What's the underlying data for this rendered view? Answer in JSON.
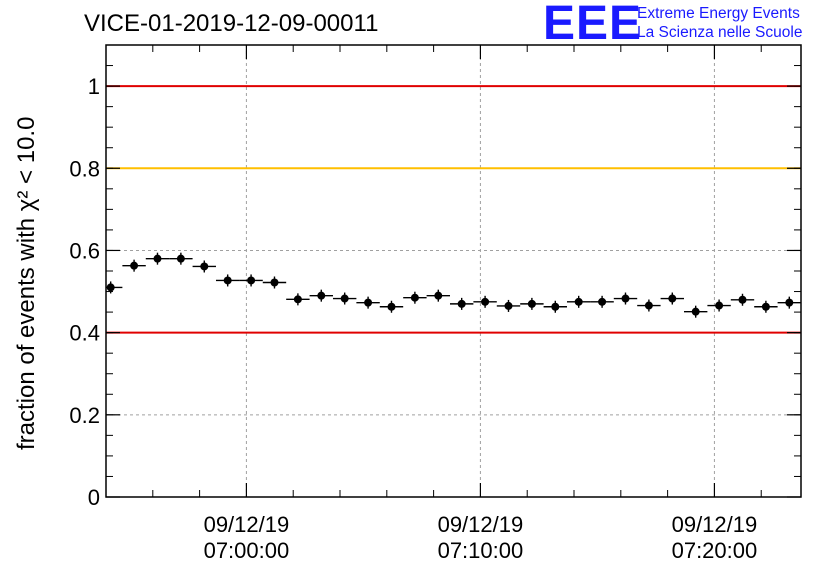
{
  "title": "VICE-01-2019-12-09-00011",
  "logo": {
    "mark": "EEE",
    "line1": "Extreme Energy Events",
    "line2": "La Scienza nelle Scuole"
  },
  "chart_data": {
    "type": "scatter",
    "title": "VICE-01-2019-12-09-00011",
    "ylabel": "fraction of events with χ² < 10.0",
    "ylim": [
      0,
      1.1
    ],
    "xlim_minutes": [
      -6.0,
      23.7
    ],
    "yticks": [
      0,
      0.2,
      0.4,
      0.6,
      0.8,
      1
    ],
    "ytick_labels": [
      "0",
      "0.2",
      "0.4",
      "0.6",
      "0.8",
      "1"
    ],
    "xticks": [
      {
        "minutes": 0,
        "date": "09/12/19",
        "time": "07:00:00"
      },
      {
        "minutes": 10,
        "date": "09/12/19",
        "time": "07:10:00"
      },
      {
        "minutes": 20,
        "date": "09/12/19",
        "time": "07:20:00"
      }
    ],
    "grid": true,
    "bin_width_minutes": 1.0,
    "reference_lines": [
      {
        "y": 1.0,
        "color": "#e00000"
      },
      {
        "y": 0.8,
        "color": "#ffbf00"
      },
      {
        "y": 0.4,
        "color": "#e00000"
      }
    ],
    "points": [
      {
        "x": -5.8,
        "y": 0.51
      },
      {
        "x": -4.8,
        "y": 0.563
      },
      {
        "x": -3.8,
        "y": 0.58
      },
      {
        "x": -2.8,
        "y": 0.58
      },
      {
        "x": -1.8,
        "y": 0.561
      },
      {
        "x": -0.8,
        "y": 0.527
      },
      {
        "x": 0.2,
        "y": 0.527
      },
      {
        "x": 1.2,
        "y": 0.522
      },
      {
        "x": 2.2,
        "y": 0.481
      },
      {
        "x": 3.2,
        "y": 0.49
      },
      {
        "x": 4.2,
        "y": 0.483
      },
      {
        "x": 5.2,
        "y": 0.473
      },
      {
        "x": 6.2,
        "y": 0.463
      },
      {
        "x": 7.2,
        "y": 0.485
      },
      {
        "x": 8.2,
        "y": 0.49
      },
      {
        "x": 9.2,
        "y": 0.47
      },
      {
        "x": 10.2,
        "y": 0.475
      },
      {
        "x": 11.2,
        "y": 0.465
      },
      {
        "x": 12.2,
        "y": 0.47
      },
      {
        "x": 13.2,
        "y": 0.463
      },
      {
        "x": 14.2,
        "y": 0.475
      },
      {
        "x": 15.2,
        "y": 0.475
      },
      {
        "x": 16.2,
        "y": 0.483
      },
      {
        "x": 17.2,
        "y": 0.466
      },
      {
        "x": 18.2,
        "y": 0.483
      },
      {
        "x": 19.2,
        "y": 0.451
      },
      {
        "x": 20.2,
        "y": 0.466
      },
      {
        "x": 21.2,
        "y": 0.48
      },
      {
        "x": 22.2,
        "y": 0.463
      },
      {
        "x": 23.2,
        "y": 0.473
      }
    ]
  }
}
